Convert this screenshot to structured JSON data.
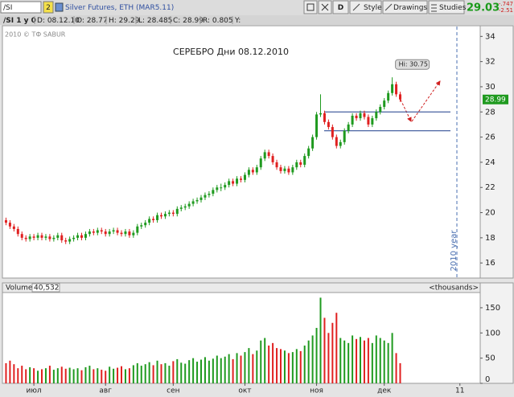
{
  "toolbar": {
    "symbol": "/SI",
    "link": "2",
    "description": "Silver Futures, ETH (MAR5.11)",
    "buttons": [
      "D",
      "Style",
      "Drawings",
      "Studies"
    ],
    "last": "29.03",
    "change": "-.747",
    "change_pct": "-2.51"
  },
  "info_bar": [
    "/SI 1 y 0",
    "D: 08.12.10",
    "O: 28.77",
    "H: 29.29",
    "L: 28.485",
    "C: 28.99",
    "R: 0.805",
    "Y:"
  ],
  "watermark": "2010 © ТФ SABUR",
  "chart_data": [
    {
      "type": "candlestick",
      "title": "СЕРЕБРО  Дни  08.12.2010",
      "up_color": "#1f9a1f",
      "down_color": "#e02020",
      "ohlc": [
        [
          19.4,
          19.6,
          19.0,
          19.2
        ],
        [
          19.2,
          19.4,
          18.7,
          18.9
        ],
        [
          18.9,
          19.1,
          18.5,
          18.7
        ],
        [
          18.7,
          18.9,
          18.1,
          18.3
        ],
        [
          18.3,
          18.5,
          17.8,
          18.0
        ],
        [
          18.0,
          18.2,
          17.7,
          17.9
        ],
        [
          17.9,
          18.3,
          17.7,
          18.1
        ],
        [
          18.1,
          18.3,
          17.8,
          18.0
        ],
        [
          18.0,
          18.4,
          17.8,
          18.2
        ],
        [
          18.2,
          18.4,
          17.8,
          18.0
        ],
        [
          18.0,
          18.3,
          17.8,
          18.1
        ],
        [
          18.1,
          18.3,
          17.7,
          17.9
        ],
        [
          17.9,
          18.2,
          17.7,
          18.0
        ],
        [
          18.0,
          18.4,
          17.8,
          18.2
        ],
        [
          18.2,
          18.4,
          17.6,
          17.8
        ],
        [
          17.8,
          18.0,
          17.5,
          17.7
        ],
        [
          17.7,
          18.1,
          17.5,
          17.9
        ],
        [
          17.9,
          18.2,
          17.7,
          18.0
        ],
        [
          18.0,
          18.4,
          17.8,
          18.2
        ],
        [
          18.2,
          18.4,
          17.8,
          18.0
        ],
        [
          18.0,
          18.5,
          17.8,
          18.3
        ],
        [
          18.3,
          18.7,
          18.1,
          18.5
        ],
        [
          18.5,
          18.7,
          18.2,
          18.4
        ],
        [
          18.4,
          18.8,
          18.2,
          18.6
        ],
        [
          18.6,
          18.8,
          18.3,
          18.5
        ],
        [
          18.5,
          18.7,
          18.1,
          18.3
        ],
        [
          18.3,
          18.7,
          18.1,
          18.5
        ],
        [
          18.5,
          18.8,
          18.3,
          18.6
        ],
        [
          18.6,
          18.8,
          18.2,
          18.4
        ],
        [
          18.4,
          18.6,
          18.1,
          18.3
        ],
        [
          18.3,
          18.7,
          18.1,
          18.5
        ],
        [
          18.5,
          18.7,
          18.0,
          18.2
        ],
        [
          18.2,
          18.6,
          18.0,
          18.4
        ],
        [
          18.4,
          19.1,
          18.2,
          18.9
        ],
        [
          18.9,
          19.2,
          18.7,
          19.0
        ],
        [
          19.0,
          19.4,
          18.8,
          19.2
        ],
        [
          19.2,
          19.7,
          19.0,
          19.5
        ],
        [
          19.5,
          19.7,
          19.2,
          19.4
        ],
        [
          19.4,
          20.0,
          19.2,
          19.8
        ],
        [
          19.8,
          20.0,
          19.5,
          19.7
        ],
        [
          19.7,
          20.1,
          19.5,
          19.9
        ],
        [
          19.9,
          20.2,
          19.7,
          20.0
        ],
        [
          20.0,
          20.2,
          19.7,
          19.9
        ],
        [
          19.9,
          20.5,
          19.7,
          20.3
        ],
        [
          20.3,
          20.6,
          20.1,
          20.4
        ],
        [
          20.4,
          20.7,
          20.2,
          20.5
        ],
        [
          20.5,
          20.9,
          20.3,
          20.7
        ],
        [
          20.7,
          21.1,
          20.5,
          20.9
        ],
        [
          20.9,
          21.2,
          20.7,
          21.0
        ],
        [
          21.0,
          21.4,
          20.8,
          21.2
        ],
        [
          21.2,
          21.6,
          21.0,
          21.4
        ],
        [
          21.4,
          21.7,
          21.2,
          21.5
        ],
        [
          21.5,
          22.0,
          21.3,
          21.8
        ],
        [
          21.8,
          22.2,
          21.6,
          22.0
        ],
        [
          22.0,
          22.3,
          21.7,
          22.0
        ],
        [
          22.0,
          22.4,
          21.8,
          22.2
        ],
        [
          22.2,
          22.7,
          22.0,
          22.5
        ],
        [
          22.5,
          22.7,
          22.1,
          22.3
        ],
        [
          22.3,
          22.9,
          22.1,
          22.7
        ],
        [
          22.7,
          22.9,
          22.4,
          22.6
        ],
        [
          22.6,
          23.2,
          22.4,
          23.0
        ],
        [
          23.0,
          23.6,
          22.8,
          23.4
        ],
        [
          23.4,
          23.6,
          23.0,
          23.2
        ],
        [
          23.2,
          23.8,
          23.0,
          23.6
        ],
        [
          23.6,
          24.5,
          23.4,
          24.3
        ],
        [
          24.3,
          25.0,
          24.1,
          24.8
        ],
        [
          24.8,
          25.0,
          24.3,
          24.5
        ],
        [
          24.5,
          24.7,
          23.8,
          24.0
        ],
        [
          24.0,
          24.2,
          23.4,
          23.6
        ],
        [
          23.6,
          23.8,
          23.1,
          23.3
        ],
        [
          23.3,
          23.7,
          23.1,
          23.5
        ],
        [
          23.5,
          23.7,
          23.0,
          23.2
        ],
        [
          23.2,
          23.8,
          23.0,
          23.6
        ],
        [
          23.6,
          24.2,
          23.4,
          24.0
        ],
        [
          24.0,
          24.2,
          23.6,
          23.8
        ],
        [
          23.8,
          24.7,
          23.6,
          24.5
        ],
        [
          24.5,
          25.3,
          24.3,
          25.1
        ],
        [
          25.1,
          26.2,
          24.9,
          26.0
        ],
        [
          26.0,
          28.0,
          25.8,
          27.8
        ],
        [
          27.8,
          29.4,
          27.6,
          27.9
        ],
        [
          27.9,
          28.1,
          27.0,
          27.2
        ],
        [
          27.2,
          27.4,
          26.6,
          26.8
        ],
        [
          26.8,
          27.0,
          25.8,
          26.0
        ],
        [
          26.0,
          26.2,
          25.1,
          25.3
        ],
        [
          25.3,
          25.8,
          25.1,
          25.6
        ],
        [
          25.6,
          26.7,
          25.4,
          26.5
        ],
        [
          26.5,
          27.2,
          26.3,
          27.0
        ],
        [
          27.0,
          27.9,
          26.8,
          27.7
        ],
        [
          27.7,
          27.9,
          27.3,
          27.5
        ],
        [
          27.5,
          28.1,
          27.3,
          27.9
        ],
        [
          27.9,
          28.1,
          27.4,
          27.6
        ],
        [
          27.6,
          27.8,
          26.8,
          27.0
        ],
        [
          27.0,
          27.7,
          26.8,
          27.5
        ],
        [
          27.5,
          28.2,
          27.3,
          28.0
        ],
        [
          28.0,
          28.6,
          27.8,
          28.4
        ],
        [
          28.4,
          29.1,
          28.2,
          28.9
        ],
        [
          28.9,
          29.7,
          28.7,
          29.5
        ],
        [
          29.5,
          30.75,
          29.3,
          30.2
        ],
        [
          30.2,
          30.4,
          29.2,
          29.4
        ],
        [
          29.4,
          29.6,
          28.8,
          28.99
        ]
      ],
      "xlim": [
        -0.9,
        119.1
      ],
      "ylim": [
        14.8,
        34.85
      ],
      "yticks": [
        16,
        18,
        20,
        22,
        24,
        26,
        28,
        30,
        32,
        34
      ],
      "hlines": [
        28,
        26.5
      ],
      "hi_label": "Hi: 30.75",
      "last_price_label": "28.99",
      "year_label": "2010 year"
    },
    {
      "type": "bar",
      "title": "Volume",
      "value_label": "40,532",
      "unit_label": "<thousands>",
      "values": [
        40,
        45,
        38,
        30,
        35,
        28,
        32,
        30,
        25,
        28,
        30,
        35,
        27,
        30,
        33,
        29,
        31,
        28,
        30,
        26,
        32,
        35,
        28,
        30,
        27,
        25,
        33,
        29,
        31,
        34,
        28,
        30,
        36,
        40,
        35,
        38,
        42,
        36,
        45,
        38,
        40,
        35,
        44,
        48,
        41,
        39,
        46,
        50,
        43,
        47,
        52,
        45,
        49,
        55,
        50,
        53,
        58,
        48,
        60,
        55,
        62,
        70,
        58,
        65,
        85,
        90,
        75,
        80,
        70,
        68,
        65,
        60,
        62,
        68,
        64,
        75,
        85,
        95,
        110,
        170,
        130,
        100,
        120,
        140,
        90,
        85,
        80,
        95,
        88,
        92,
        85,
        90,
        80,
        95,
        90,
        85,
        80,
        100,
        60,
        40
      ],
      "xlim": [
        -0.9,
        119.1
      ],
      "ylim": [
        0,
        185
      ],
      "yticks": [
        0,
        50,
        100,
        150
      ],
      "xticks": [
        {
          "value": 7,
          "label": "июл"
        },
        {
          "value": 25,
          "label": "авг"
        },
        {
          "value": 42,
          "label": "сен"
        },
        {
          "value": 60,
          "label": "окт"
        },
        {
          "value": 78,
          "label": "ноя"
        },
        {
          "value": 95,
          "label": "дек"
        },
        {
          "value": 114,
          "label": "11"
        }
      ]
    }
  ]
}
